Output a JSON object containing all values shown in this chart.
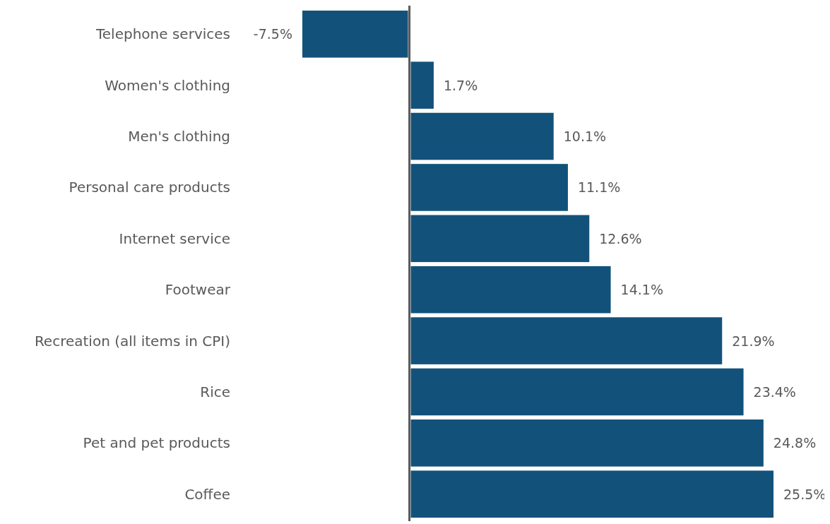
{
  "chart_data": {
    "type": "bar",
    "orientation": "horizontal",
    "categories": [
      "Telephone services",
      "Women's clothing",
      "Men's clothing",
      "Personal care products",
      "Internet service",
      "Footwear",
      "Recreation (all items in CPI)",
      "Rice",
      "Pet and pet products",
      "Coffee"
    ],
    "values": [
      -7.5,
      1.7,
      10.1,
      11.1,
      12.6,
      14.1,
      21.9,
      23.4,
      24.8,
      25.5
    ],
    "value_labels": [
      "-7.5%",
      "1.7%",
      "10.1%",
      "11.1%",
      "12.6%",
      "14.1%",
      "21.9%",
      "23.4%",
      "24.8%",
      "25.5%"
    ],
    "color": "#12527a",
    "xlim": [
      -7.5,
      25.5
    ]
  }
}
